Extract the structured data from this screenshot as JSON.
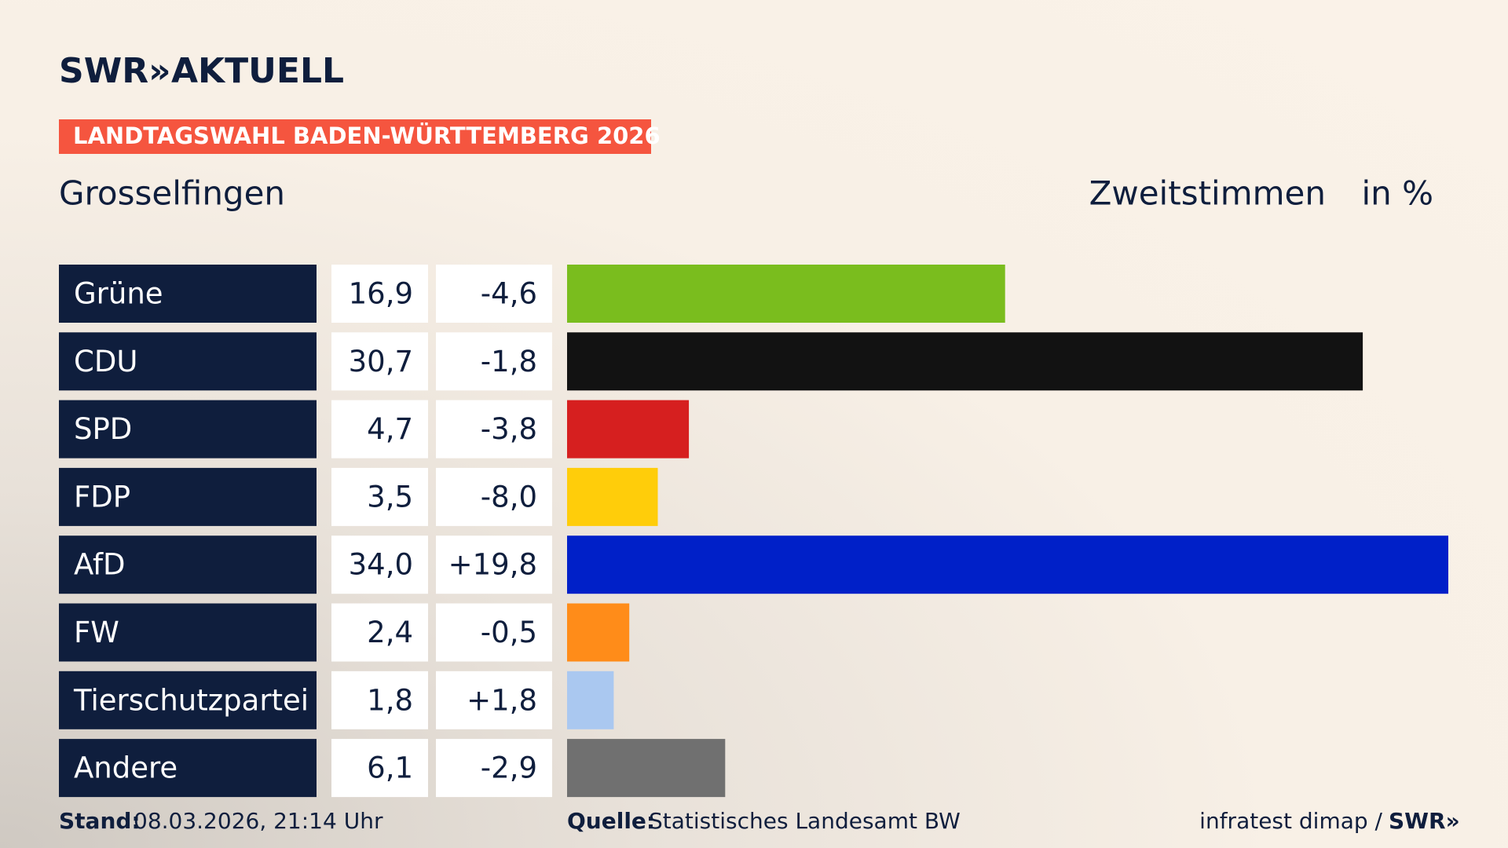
{
  "header": {
    "logo": "SWR»",
    "brand": "AKTUELL",
    "banner": "LANDTAGSWAHL BADEN-WÜRTTEMBERG 2026"
  },
  "chart_data": {
    "type": "bar",
    "title": "Grosselfingen",
    "subtitle": "Zweitstimmen",
    "unit": "in %",
    "categories": [
      "Grüne",
      "CDU",
      "SPD",
      "FDP",
      "AfD",
      "FW",
      "Tierschutzpartei",
      "Andere"
    ],
    "values": [
      16.9,
      30.7,
      4.7,
      3.5,
      34.0,
      2.4,
      1.8,
      6.1
    ],
    "value_labels": [
      "16,9",
      "30,7",
      "4,7",
      "3,5",
      "34,0",
      "2,4",
      "1,8",
      "6,1"
    ],
    "changes": [
      -4.6,
      -1.8,
      -3.8,
      -8.0,
      19.8,
      -0.5,
      1.8,
      -2.9
    ],
    "change_labels": [
      "-4,6",
      "-1,8",
      "-3,8",
      "-8,0",
      "+19,8",
      "-0,5",
      "+1,8",
      "-2,9"
    ],
    "colors": [
      "#7abd1e",
      "#121212",
      "#d61f1f",
      "#ffcd0a",
      "#0020c8",
      "#ff8c19",
      "#aac8f0",
      "#707070"
    ],
    "xlim": [
      0,
      34
    ]
  },
  "footer": {
    "stand_label": "Stand:",
    "stand": "08.03.2026, 21:14 Uhr",
    "source_label": "Quelle:",
    "source": "Statistisches Landesamt BW",
    "credit": "infratest dimap /",
    "credit_logo": "SWR»"
  }
}
